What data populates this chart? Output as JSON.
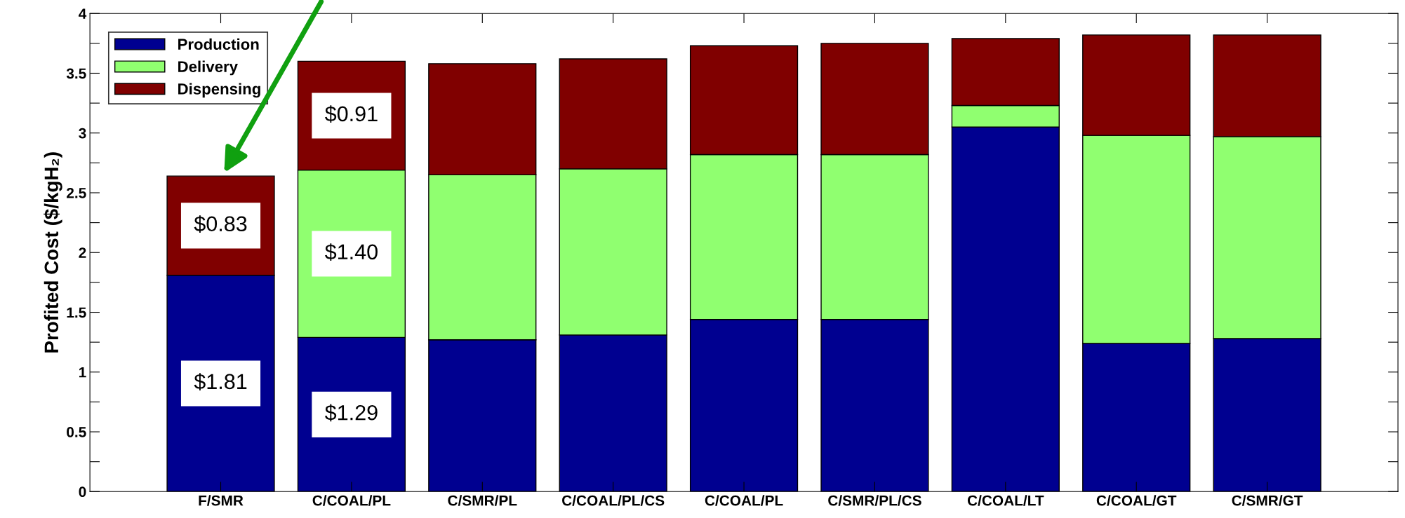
{
  "chart_data": {
    "type": "bar",
    "stacked": true,
    "ylabel": "Profited Cost ($/kgH₂)",
    "categories": [
      "F/SMR",
      "C/COAL/PL",
      "C/SMR/PL",
      "C/COAL/PL/CS",
      "C/COAL/PL",
      "C/SMR/PL/CS",
      "C/COAL/LT",
      "C/COAL/GT",
      "C/SMR/GT"
    ],
    "series": [
      {
        "name": "Production",
        "color": "#000090",
        "values": [
          1.81,
          1.29,
          1.27,
          1.31,
          1.44,
          1.44,
          3.05,
          1.24,
          1.28
        ],
        "value_labels": [
          "$1.81",
          "$1.29",
          null,
          null,
          null,
          null,
          null,
          null,
          null
        ]
      },
      {
        "name": "Delivery",
        "color": "#90ff70",
        "values": [
          0,
          1.4,
          1.38,
          1.39,
          1.38,
          1.38,
          0.18,
          1.74,
          1.69
        ],
        "value_labels": [
          null,
          "$1.40",
          null,
          null,
          null,
          null,
          null,
          null,
          null
        ]
      },
      {
        "name": "Dispensing",
        "color": "#800000",
        "values": [
          0.83,
          0.91,
          0.93,
          0.92,
          0.91,
          0.93,
          0.56,
          0.84,
          0.85
        ],
        "value_labels": [
          "$0.83",
          "$0.91",
          null,
          null,
          null,
          null,
          null,
          null,
          null
        ]
      }
    ],
    "ylim": [
      0,
      4
    ],
    "yticks": [
      0,
      {
        "value": 0.25,
        "label": null
      },
      0.5,
      {
        "value": 0.75,
        "label": null
      },
      1,
      {
        "value": 1.25,
        "label": null
      },
      1.5,
      {
        "value": 1.75,
        "label": null
      },
      2,
      {
        "value": 2.25,
        "label": null
      },
      2.5,
      {
        "value": 2.75,
        "label": null
      },
      3,
      {
        "value": 3.25,
        "label": null
      },
      3.5,
      {
        "value": 3.75,
        "label": null
      },
      4
    ],
    "legend": "top left",
    "grid": false
  }
}
